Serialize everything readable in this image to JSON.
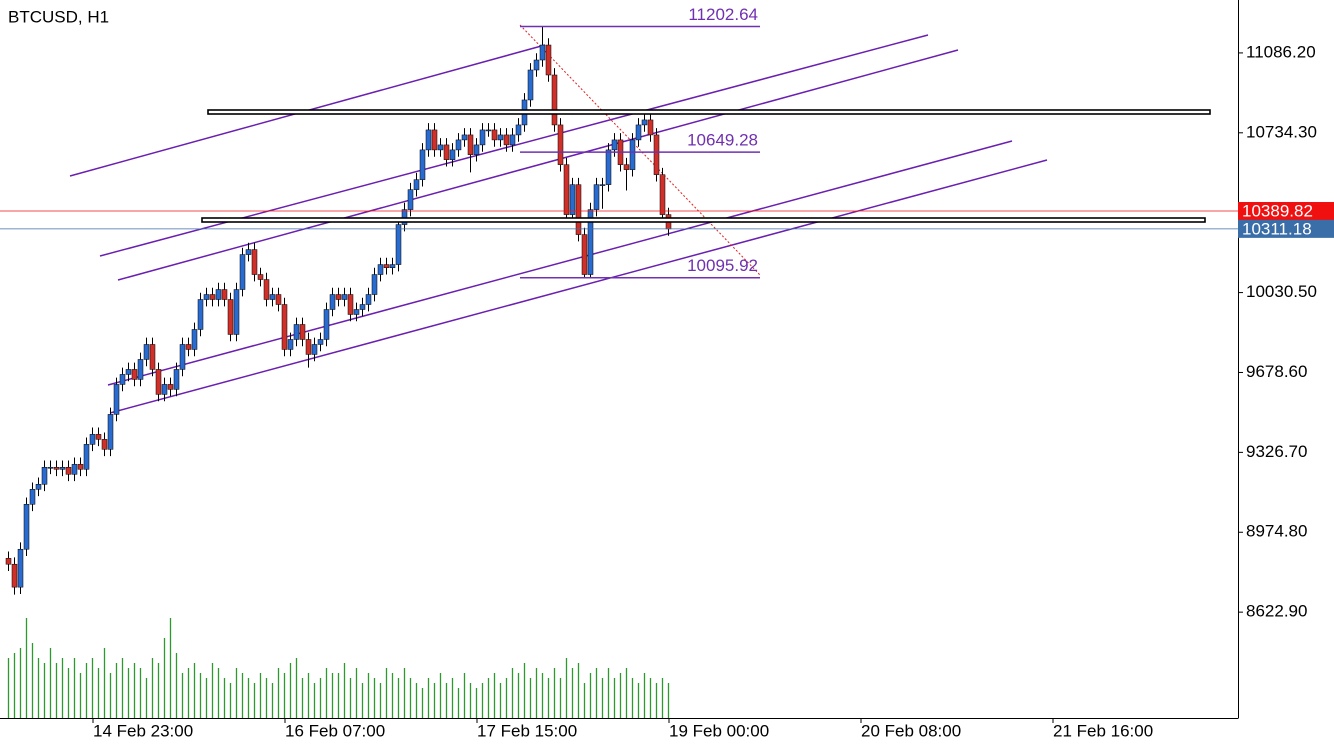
{
  "chart_data": {
    "type": "candlestick",
    "title": "BTCUSD, H1",
    "open": [
      8860,
      8834,
      8733,
      8900,
      9098,
      9164,
      9186,
      9261,
      9261,
      9252,
      9261,
      9230,
      9274,
      9252,
      9362,
      9406,
      9384,
      9340,
      9494,
      9626,
      9670,
      9692,
      9648,
      9736,
      9802,
      9692,
      9582,
      9626,
      9604,
      9692,
      9802,
      9780,
      9868,
      10000,
      10022,
      10000,
      10044,
      10000,
      9846,
      10044,
      10198,
      10220,
      10110,
      10088,
      10000,
      10022,
      9978,
      9780,
      9824,
      9890,
      9824,
      9758,
      9802,
      9824,
      9956,
      10022,
      10000,
      10022,
      9934,
      9956,
      9978,
      10022,
      10110,
      10154,
      10140,
      10154,
      10330,
      10396,
      10484,
      10528,
      10659,
      10747,
      10659,
      10681,
      10616,
      10659,
      10703,
      10725,
      10638,
      10681,
      10747,
      10747,
      10703,
      10725,
      10681,
      10725,
      10769,
      10879,
      11011,
      11055,
      11121,
      10989,
      10769,
      10594,
      10374,
      10506,
      10286,
      10110,
      10396,
      10506,
      10506,
      10659,
      10703,
      10594,
      10572,
      10703,
      10769,
      10791,
      10725,
      10550,
      10374
    ],
    "high": [
      8890,
      8864,
      8930,
      9128,
      9194,
      9216,
      9291,
      9291,
      9291,
      9291,
      9291,
      9304,
      9304,
      9392,
      9436,
      9436,
      9414,
      9524,
      9656,
      9700,
      9722,
      9722,
      9766,
      9832,
      9832,
      9722,
      9656,
      9656,
      9722,
      9832,
      9832,
      9898,
      10030,
      10052,
      10052,
      10074,
      10074,
      10030,
      10074,
      10228,
      10250,
      10250,
      10140,
      10118,
      10052,
      10052,
      10008,
      9854,
      9920,
      9920,
      9854,
      9832,
      9854,
      9986,
      10052,
      10052,
      10052,
      10052,
      9986,
      10008,
      10052,
      10140,
      10184,
      10184,
      10184,
      10360,
      10426,
      10514,
      10558,
      10689,
      10777,
      10777,
      10711,
      10711,
      10689,
      10733,
      10755,
      10755,
      10711,
      10777,
      10777,
      10777,
      10755,
      10755,
      10755,
      10799,
      10909,
      11041,
      11085,
      11203,
      11151,
      11019,
      10799,
      10624,
      10536,
      10536,
      10316,
      10426,
      10536,
      10536,
      10689,
      10733,
      10733,
      10624,
      10733,
      10799,
      10821,
      10821,
      10755,
      10580,
      10404
    ],
    "low": [
      8804,
      8700,
      8703,
      8870,
      9068,
      9134,
      9156,
      9231,
      9222,
      9222,
      9200,
      9200,
      9222,
      9222,
      9332,
      9354,
      9310,
      9310,
      9464,
      9596,
      9640,
      9618,
      9618,
      9706,
      9662,
      9552,
      9552,
      9574,
      9574,
      9662,
      9750,
      9750,
      9838,
      9970,
      9970,
      9970,
      9970,
      9816,
      9816,
      10014,
      10168,
      10080,
      10058,
      9970,
      9970,
      9948,
      9750,
      9750,
      9794,
      9794,
      9700,
      9728,
      9772,
      9794,
      9926,
      9970,
      9970,
      9904,
      9904,
      9926,
      9948,
      9992,
      10080,
      10110,
      10110,
      10124,
      10300,
      10366,
      10454,
      10498,
      10629,
      10629,
      10629,
      10586,
      10586,
      10629,
      10673,
      10560,
      10608,
      10651,
      10717,
      10673,
      10673,
      10651,
      10651,
      10695,
      10739,
      10849,
      10981,
      11025,
      10959,
      10739,
      10564,
      10344,
      10344,
      10256,
      10096,
      10096,
      10366,
      10400,
      10476,
      10629,
      10564,
      10480,
      10542,
      10673,
      10739,
      10695,
      10520,
      10344,
      10281
    ],
    "close": [
      8834,
      8733,
      8900,
      9098,
      9164,
      9186,
      9261,
      9261,
      9252,
      9261,
      9230,
      9274,
      9252,
      9362,
      9406,
      9384,
      9340,
      9494,
      9626,
      9670,
      9692,
      9648,
      9736,
      9802,
      9692,
      9582,
      9626,
      9604,
      9692,
      9802,
      9780,
      9868,
      10000,
      10022,
      10000,
      10044,
      10000,
      9846,
      10044,
      10198,
      10220,
      10110,
      10088,
      10000,
      10022,
      9978,
      9780,
      9824,
      9890,
      9824,
      9758,
      9802,
      9824,
      9956,
      10022,
      10000,
      10022,
      9934,
      9956,
      9978,
      10022,
      10110,
      10154,
      10140,
      10154,
      10330,
      10396,
      10484,
      10528,
      10659,
      10747,
      10659,
      10681,
      10616,
      10659,
      10703,
      10725,
      10638,
      10681,
      10747,
      10747,
      10703,
      10725,
      10681,
      10725,
      10769,
      10879,
      11011,
      11055,
      11121,
      10989,
      10769,
      10594,
      10374,
      10506,
      10286,
      10110,
      10396,
      10506,
      10506,
      10659,
      10703,
      10594,
      10572,
      10703,
      10769,
      10791,
      10725,
      10550,
      10374,
      10311
    ],
    "volume": [
      60,
      65,
      70,
      100,
      75,
      60,
      55,
      70,
      55,
      60,
      50,
      60,
      45,
      55,
      60,
      50,
      70,
      45,
      55,
      60,
      50,
      55,
      50,
      40,
      60,
      55,
      80,
      100,
      65,
      45,
      50,
      55,
      45,
      40,
      55,
      50,
      40,
      35,
      50,
      45,
      40,
      35,
      45,
      40,
      35,
      50,
      45,
      55,
      60,
      40,
      45,
      35,
      40,
      50,
      45,
      45,
      55,
      40,
      50,
      35,
      45,
      40,
      35,
      50,
      45,
      40,
      50,
      40,
      35,
      30,
      40,
      35,
      45,
      35,
      40,
      30,
      45,
      35,
      30,
      35,
      40,
      45,
      35,
      40,
      50,
      45,
      55,
      40,
      50,
      45,
      40,
      50,
      40,
      60,
      50,
      55,
      35,
      45,
      50,
      40,
      50,
      40,
      45,
      50,
      40,
      35,
      45,
      40,
      35,
      40,
      35
    ],
    "up_color": "#2a6bd0",
    "down_color": "#d0302a",
    "volume_color": "#2e9a2e",
    "annotation_color": "#7030b0",
    "ylim": [
      8156.6,
      11319.3
    ],
    "yticks": [
      {
        "value": 11086.2,
        "label": "11086.20"
      },
      {
        "value": 10734.3,
        "label": "10734.30"
      },
      {
        "value": 10030.5,
        "label": "10030.50"
      },
      {
        "value": 9678.6,
        "label": "9678.60"
      },
      {
        "value": 9326.7,
        "label": "9326.70"
      },
      {
        "value": 8974.8,
        "label": "8974.80"
      },
      {
        "value": 8622.9,
        "label": "8622.90"
      }
    ],
    "xticks": [
      {
        "value": 14,
        "label": "14 Feb 23:00"
      },
      {
        "value": 46,
        "label": "16 Feb 07:00"
      },
      {
        "value": 78,
        "label": "17 Feb 15:00"
      },
      {
        "value": 110,
        "label": "19 Feb 00:00"
      },
      {
        "value": 142,
        "label": "20 Feb 08:00"
      },
      {
        "value": 174,
        "label": "21 Feb 16:00"
      }
    ],
    "annotations": [
      {
        "value": 11202.64,
        "label": "11202.64"
      },
      {
        "value": 10649.28,
        "label": "10649.28"
      },
      {
        "value": 10095.92,
        "label": "10095.92"
      }
    ],
    "price_lines": [
      {
        "value": 10389.82,
        "label": "10389.82",
        "color": "#f01010"
      },
      {
        "value": 10311.18,
        "label": "10311.18",
        "color": "#3a6ea8"
      }
    ]
  }
}
